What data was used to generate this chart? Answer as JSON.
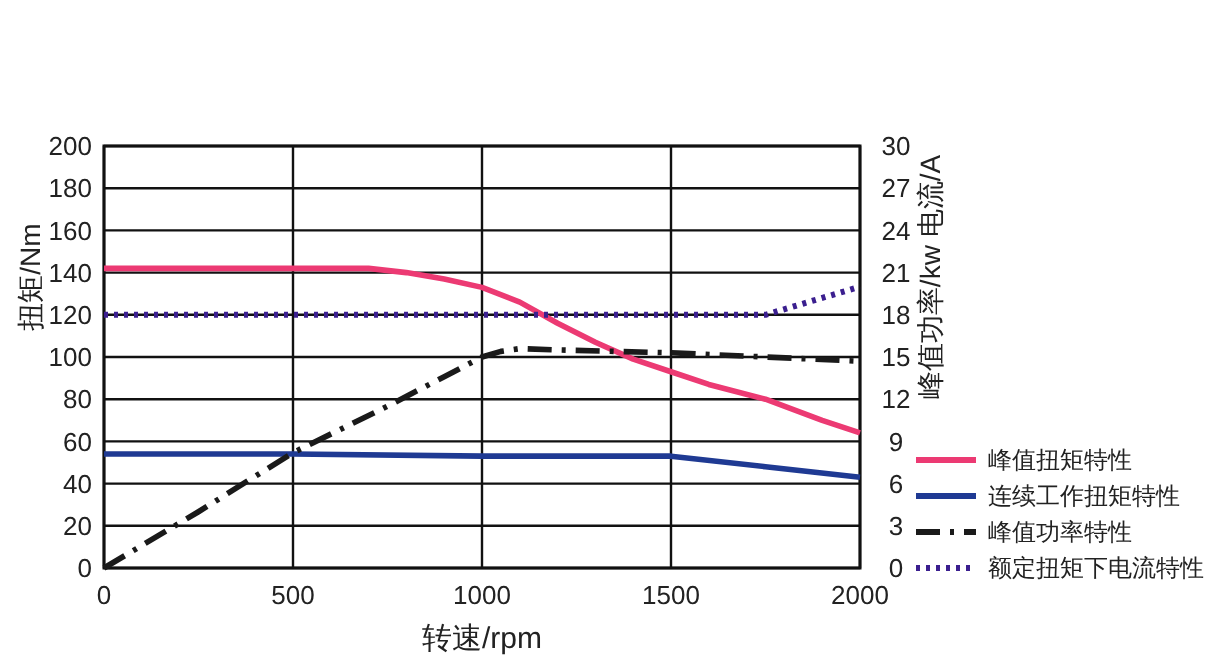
{
  "chart_data": {
    "type": "line",
    "xlabel": "转速/rpm",
    "ylabel": "扭矩/Nm",
    "y2label": "峰值功率/kw  电流/A",
    "xlim": [
      0,
      2000
    ],
    "xticks": [
      0,
      500,
      1000,
      1500,
      2000
    ],
    "ylim": [
      0,
      200
    ],
    "yticks": [
      0,
      20,
      40,
      60,
      80,
      100,
      120,
      140,
      160,
      180,
      200
    ],
    "y2lim": [
      0,
      30
    ],
    "y2ticks": [
      0,
      3,
      6,
      9,
      12,
      15,
      18,
      21,
      24,
      27,
      30
    ],
    "grid": true,
    "legend": "right",
    "series": [
      {
        "name": "峰值扭矩特性",
        "color": "#ec3a73",
        "line_style": "solid",
        "x": [
          0,
          500,
          700,
          800,
          900,
          1000,
          1100,
          1200,
          1300,
          1400,
          1500,
          1600,
          1750,
          1900,
          2000
        ],
        "values": [
          142,
          142,
          142,
          140,
          137,
          133,
          126,
          116,
          107,
          99,
          93,
          87,
          80,
          70,
          64
        ]
      },
      {
        "name": "连续工作扭矩特性",
        "color": "#1f3a93",
        "line_style": "solid",
        "x": [
          0,
          500,
          1000,
          1500,
          1750,
          2000
        ],
        "values": [
          54,
          54,
          53,
          53,
          48,
          43
        ]
      },
      {
        "name": "峰值功率特性",
        "color": "#1a1a1a",
        "line_style": "dashed",
        "axis": "y2",
        "x": [
          0,
          250,
          500,
          750,
          900,
          1000,
          1050,
          1100,
          1200,
          1500,
          1750,
          2000
        ],
        "values": [
          0,
          4,
          8.2,
          11.5,
          13.6,
          15,
          15.4,
          15.6,
          15.5,
          15.3,
          15,
          14.7
        ]
      },
      {
        "name": "额定扭矩下电流特性",
        "color": "#3b1f8f",
        "line_style": "dotted",
        "axis": "y2",
        "x": [
          0,
          500,
          1000,
          1500,
          1750,
          1850,
          2000
        ],
        "values": [
          18,
          18,
          18,
          18,
          18,
          18.8,
          20
        ]
      }
    ]
  }
}
